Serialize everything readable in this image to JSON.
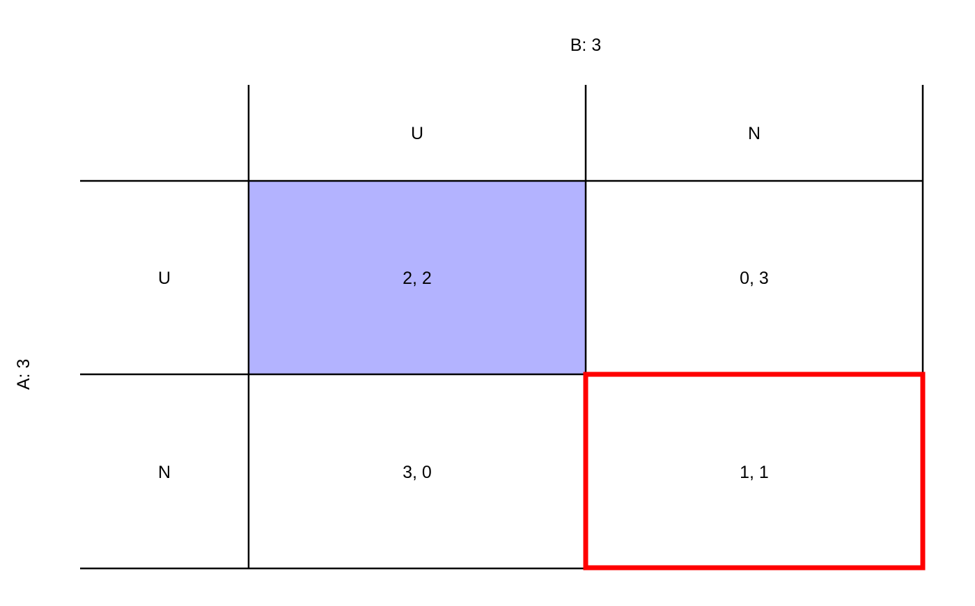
{
  "game": {
    "column_player_label": "B: 3",
    "row_player_label": "A: 3",
    "column_strategies": [
      "U",
      "N"
    ],
    "row_strategies": [
      "U",
      "N"
    ],
    "payoffs": [
      [
        "2, 2",
        "0, 3"
      ],
      [
        "3, 0",
        "1, 1"
      ]
    ],
    "highlighted_cell": {
      "row": 0,
      "col": 0,
      "fill": "#b3b3ff"
    },
    "outlined_cell": {
      "row": 1,
      "col": 1,
      "stroke": "#ff0000"
    }
  }
}
